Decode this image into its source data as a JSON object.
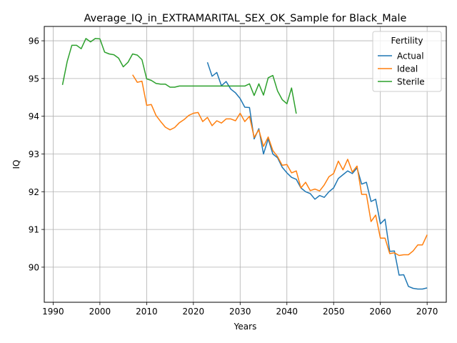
{
  "chart_data": {
    "type": "line",
    "title": "Average_IQ_in_EXTRAMARITAL_SEX_OK_Sample for Black_Male",
    "xlabel": "Years",
    "ylabel": "IQ",
    "xlim": [
      1988.1,
      2074.1
    ],
    "ylim": [
      89.07,
      96.38
    ],
    "xticks": [
      1990,
      2000,
      2010,
      2020,
      2030,
      2040,
      2050,
      2060,
      2070
    ],
    "yticks": [
      90,
      91,
      92,
      93,
      94,
      95,
      96
    ],
    "grid": true,
    "legend": {
      "title": "Fertility",
      "position": "top-right"
    },
    "series": [
      {
        "name": "Actual",
        "color": "#1f77b4",
        "x": [
          2023,
          2024,
          2025,
          2026,
          2027,
          2028,
          2029,
          2030,
          2031,
          2032,
          2033,
          2034,
          2035,
          2036,
          2037,
          2038,
          2039,
          2040,
          2041,
          2042,
          2043,
          2044,
          2045,
          2046,
          2047,
          2048,
          2049,
          2050,
          2051,
          2052,
          2053,
          2054,
          2055,
          2056,
          2057,
          2058,
          2059,
          2060,
          2061,
          2062,
          2063,
          2064,
          2065,
          2066,
          2067,
          2068,
          2069,
          2070
        ],
        "y": [
          95.43,
          95.06,
          95.16,
          94.81,
          94.92,
          94.72,
          94.62,
          94.47,
          94.24,
          94.23,
          93.4,
          93.67,
          93.0,
          93.4,
          93.0,
          92.9,
          92.65,
          92.5,
          92.38,
          92.33,
          92.1,
          92.0,
          91.95,
          91.8,
          91.9,
          91.85,
          92.0,
          92.1,
          92.35,
          92.45,
          92.55,
          92.48,
          92.63,
          92.2,
          92.25,
          91.74,
          91.8,
          91.15,
          91.27,
          90.42,
          90.43,
          89.79,
          89.8,
          89.49,
          89.44,
          89.42,
          89.42,
          89.45
        ]
      },
      {
        "name": "Ideal",
        "color": "#ff7f0e",
        "x": [
          2007,
          2008,
          2009,
          2010,
          2011,
          2012,
          2013,
          2014,
          2015,
          2016,
          2017,
          2018,
          2019,
          2020,
          2021,
          2022,
          2023,
          2024,
          2025,
          2026,
          2027,
          2028,
          2029,
          2030,
          2031,
          2032,
          2033,
          2034,
          2035,
          2036,
          2037,
          2038,
          2039,
          2040,
          2041,
          2042,
          2043,
          2044,
          2045,
          2046,
          2047,
          2048,
          2049,
          2050,
          2051,
          2052,
          2053,
          2054,
          2055,
          2056,
          2057,
          2058,
          2059,
          2060,
          2061,
          2062,
          2063,
          2064,
          2065,
          2066,
          2067,
          2068,
          2069,
          2070
        ],
        "y": [
          95.1,
          94.9,
          94.93,
          94.29,
          94.31,
          94.02,
          93.86,
          93.71,
          93.64,
          93.7,
          93.83,
          93.91,
          94.02,
          94.08,
          94.1,
          93.86,
          93.97,
          93.75,
          93.88,
          93.82,
          93.93,
          93.93,
          93.88,
          94.08,
          93.86,
          94.0,
          93.44,
          93.64,
          93.2,
          93.45,
          93.09,
          92.93,
          92.7,
          92.72,
          92.5,
          92.55,
          92.1,
          92.25,
          92.03,
          92.07,
          92.02,
          92.18,
          92.4,
          92.48,
          92.81,
          92.58,
          92.86,
          92.52,
          92.68,
          91.93,
          91.93,
          91.21,
          91.38,
          90.77,
          90.77,
          90.36,
          90.38,
          90.31,
          90.33,
          90.33,
          90.43,
          90.59,
          90.59,
          90.86
        ]
      },
      {
        "name": "Sterile",
        "color": "#2ca02c",
        "x": [
          1992,
          1993,
          1994,
          1995,
          1996,
          1997,
          1998,
          1999,
          2000,
          2001,
          2002,
          2003,
          2004,
          2005,
          2006,
          2007,
          2008,
          2009,
          2010,
          2011,
          2012,
          2013,
          2014,
          2015,
          2016,
          2017,
          2018,
          2019,
          2020,
          2021,
          2022,
          2023,
          2024,
          2025,
          2026,
          2027,
          2028,
          2029,
          2030,
          2031,
          2032,
          2033,
          2034,
          2035,
          2036,
          2037,
          2038,
          2039,
          2040,
          2041,
          2042
        ],
        "y": [
          94.83,
          95.45,
          95.88,
          95.88,
          95.79,
          96.06,
          95.97,
          96.06,
          96.05,
          95.7,
          95.65,
          95.63,
          95.54,
          95.31,
          95.43,
          95.65,
          95.62,
          95.5,
          94.99,
          94.95,
          94.87,
          94.85,
          94.85,
          94.77,
          94.77,
          94.8,
          94.8,
          94.8,
          94.8,
          94.8,
          94.8,
          94.8,
          94.8,
          94.8,
          94.8,
          94.8,
          94.8,
          94.8,
          94.8,
          94.8,
          94.86,
          94.55,
          94.86,
          94.56,
          95.02,
          95.08,
          94.67,
          94.44,
          94.33,
          94.75,
          94.07
        ]
      }
    ]
  }
}
